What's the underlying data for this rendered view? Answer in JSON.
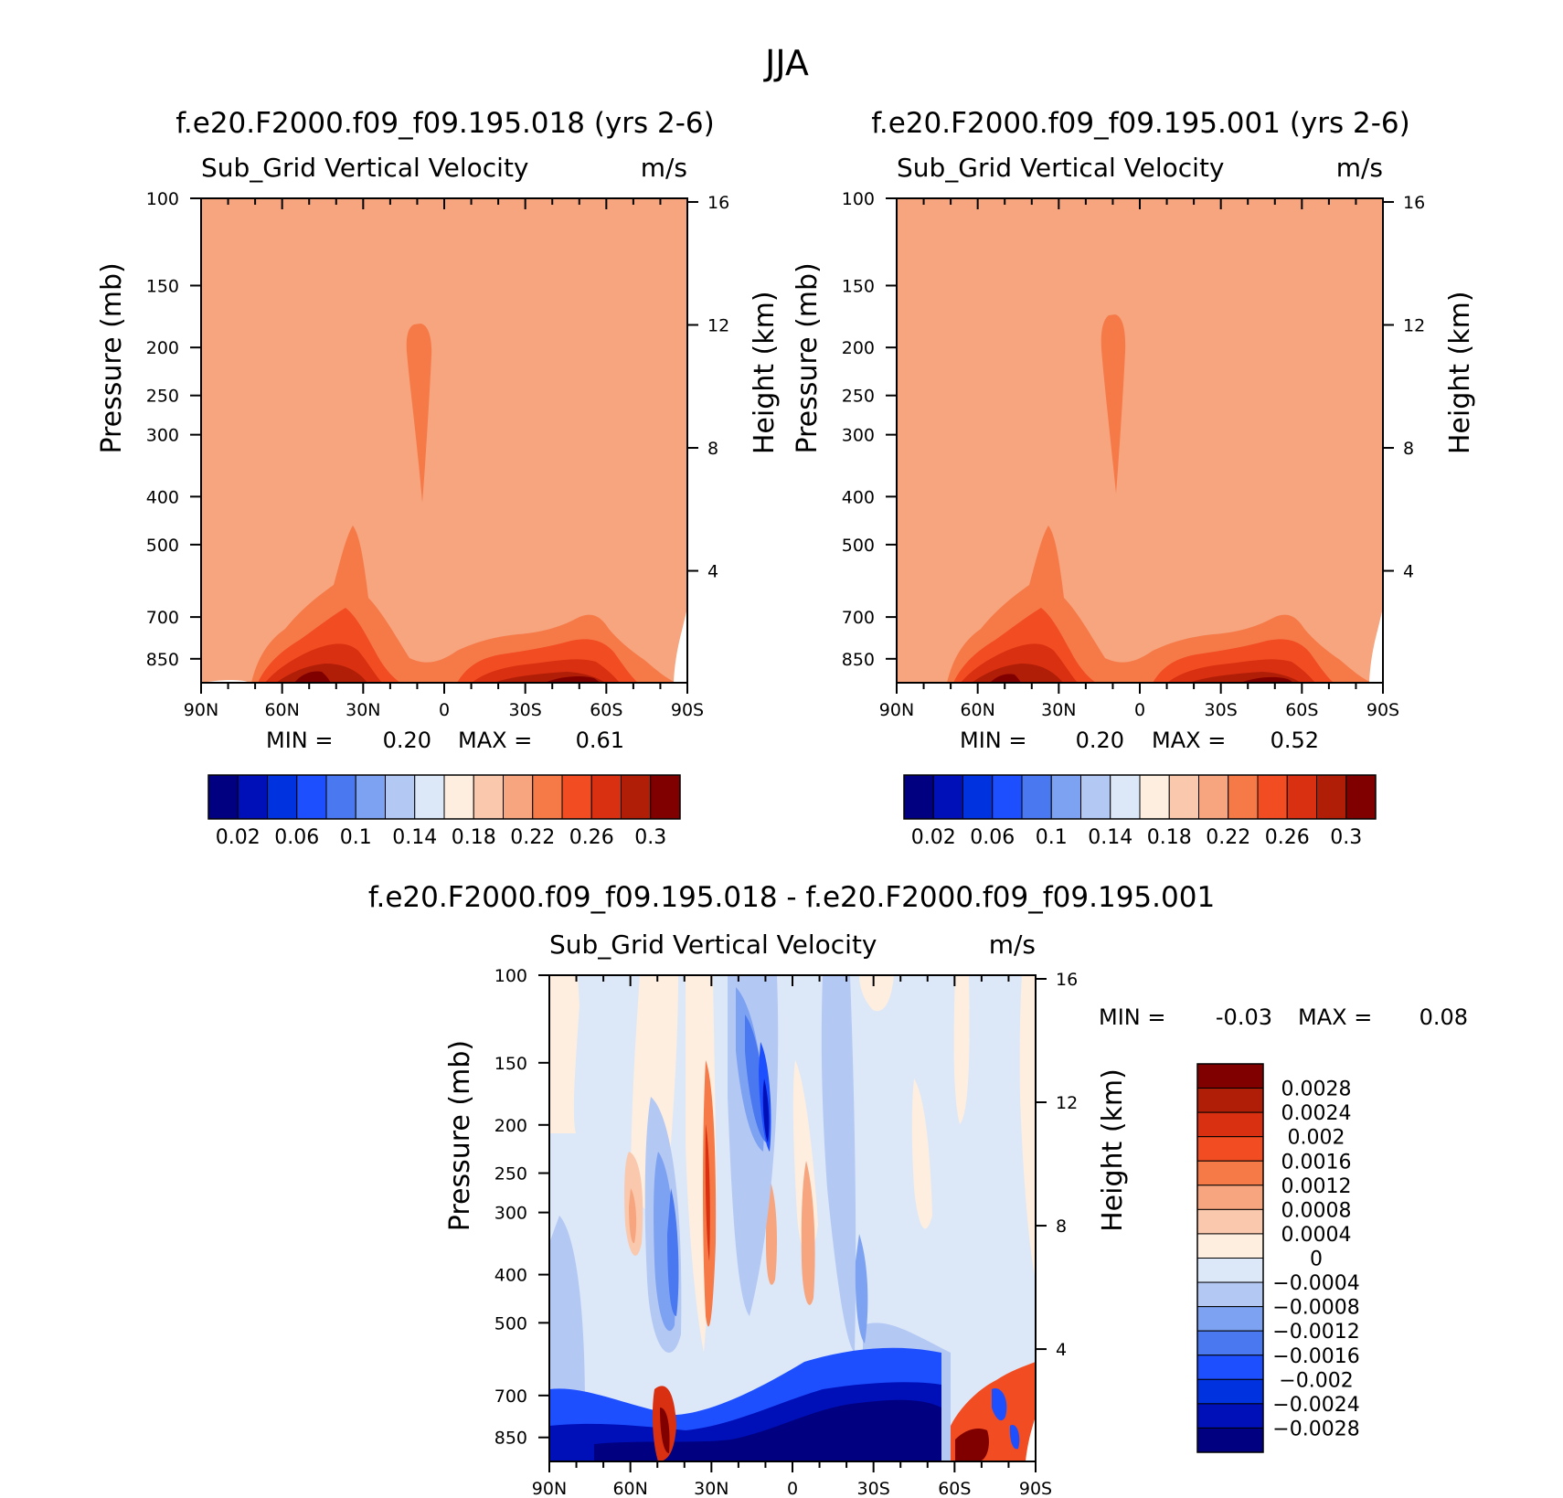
{
  "figure": {
    "season_title": "JJA",
    "field_label": "Sub_Grid Vertical Velocity",
    "units": "m/s",
    "ylabel_left": "Pressure (mb)",
    "ylabel_right": "Height (km)",
    "min_label": "MIN =",
    "max_label": "MAX ="
  },
  "chart_data": [
    {
      "type": "heatmap",
      "title": "f.e20.F2000.f09_f09.195.018 (yrs 2-6)",
      "subtitle": "Sub_Grid Vertical Velocity",
      "units": "m/s",
      "min_text": "0.20",
      "max_text": "0.61",
      "min": 0.2,
      "max": 0.61,
      "xlabel": "",
      "ylabel": "Pressure (mb)",
      "y2label": "Height (km)",
      "xticks": [
        "90N",
        "60N",
        "30N",
        "0",
        "30S",
        "60S",
        "90S"
      ],
      "yticks": [
        100,
        150,
        200,
        250,
        300,
        400,
        500,
        700,
        850
      ],
      "y2ticks": [
        4,
        8,
        12,
        16
      ],
      "ylim": [
        100,
        950
      ],
      "log_y": true,
      "colorbar": {
        "levels": [
          0.02,
          0.04,
          0.06,
          0.08,
          0.1,
          0.12,
          0.14,
          0.16,
          0.18,
          0.2,
          0.22,
          0.24,
          0.26,
          0.28,
          0.3
        ],
        "labels": [
          "0.02",
          "0.06",
          "0.1",
          "0.14",
          "0.18",
          "0.22",
          "0.26",
          "0.3"
        ],
        "colors": [
          "#000080",
          "#0010b8",
          "#0032e0",
          "#1e4fff",
          "#4a78f0",
          "#7ea2f2",
          "#b4c8f4",
          "#dce8f8",
          "#fdeee0",
          "#fac8ad",
          "#f6a57f",
          "#f67a48",
          "#f24c22",
          "#d83010",
          "#b01e08",
          "#800000"
        ]
      }
    },
    {
      "type": "heatmap",
      "title": "f.e20.F2000.f09_f09.195.001 (yrs 2-6)",
      "subtitle": "Sub_Grid Vertical Velocity",
      "units": "m/s",
      "min_text": "0.20",
      "max_text": "0.52",
      "min": 0.2,
      "max": 0.52,
      "xlabel": "",
      "ylabel": "Pressure (mb)",
      "y2label": "Height (km)",
      "xticks": [
        "90N",
        "60N",
        "30N",
        "0",
        "30S",
        "60S",
        "90S"
      ],
      "yticks": [
        100,
        150,
        200,
        250,
        300,
        400,
        500,
        700,
        850
      ],
      "y2ticks": [
        4,
        8,
        12,
        16
      ],
      "ylim": [
        100,
        950
      ],
      "log_y": true,
      "colorbar": {
        "levels": [
          0.02,
          0.04,
          0.06,
          0.08,
          0.1,
          0.12,
          0.14,
          0.16,
          0.18,
          0.2,
          0.22,
          0.24,
          0.26,
          0.28,
          0.3
        ],
        "labels": [
          "0.02",
          "0.06",
          "0.1",
          "0.14",
          "0.18",
          "0.22",
          "0.26",
          "0.3"
        ],
        "colors": [
          "#000080",
          "#0010b8",
          "#0032e0",
          "#1e4fff",
          "#4a78f0",
          "#7ea2f2",
          "#b4c8f4",
          "#dce8f8",
          "#fdeee0",
          "#fac8ad",
          "#f6a57f",
          "#f67a48",
          "#f24c22",
          "#d83010",
          "#b01e08",
          "#800000"
        ]
      }
    },
    {
      "type": "heatmap",
      "title": "f.e20.F2000.f09_f09.195.018 - f.e20.F2000.f09_f09.195.001",
      "subtitle": "Sub_Grid Vertical Velocity",
      "units": "m/s",
      "min_text": "-0.03",
      "max_text": "0.08",
      "min": -0.03,
      "max": 0.08,
      "xlabel": "",
      "ylabel": "Pressure (mb)",
      "y2label": "Height (km)",
      "xticks": [
        "90N",
        "60N",
        "30N",
        "0",
        "30S",
        "60S",
        "90S"
      ],
      "yticks": [
        100,
        150,
        200,
        250,
        300,
        400,
        500,
        700,
        850
      ],
      "y2ticks": [
        4,
        8,
        12,
        16
      ],
      "ylim": [
        100,
        950
      ],
      "log_y": true,
      "colorbar": {
        "labels": [
          "0.0028",
          "0.0024",
          "0.002",
          "0.0016",
          "0.0012",
          "0.0008",
          "0.0004",
          "0",
          "-0.0004",
          "-0.0008",
          "-0.0012",
          "-0.0016",
          "-0.002",
          "-0.0024",
          "-0.0028"
        ],
        "colors_top_to_bottom": [
          "#800000",
          "#b01e08",
          "#d83010",
          "#f24c22",
          "#f67a48",
          "#f6a57f",
          "#fac8ad",
          "#fdeee0",
          "#dce8f8",
          "#b4c8f4",
          "#7ea2f2",
          "#4a78f0",
          "#1e4fff",
          "#0032e0",
          "#0010b8",
          "#000080"
        ]
      }
    }
  ]
}
